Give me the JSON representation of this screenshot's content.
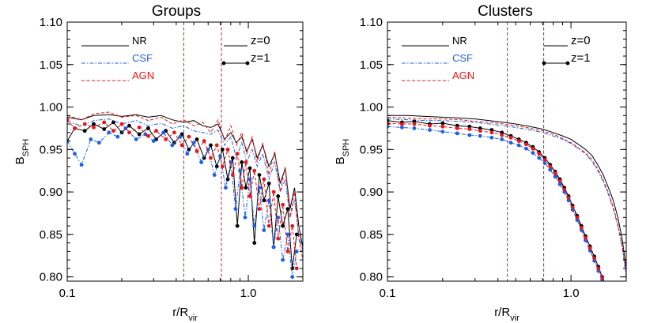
{
  "figure": {
    "colors": {
      "NR": "#000000",
      "CSF": "#1f5fe6",
      "AGN": "#e8141b",
      "vline": "#e8141b"
    }
  },
  "chart_data": [
    {
      "type": "line",
      "title": "Groups",
      "xlabel": "r/R",
      "xlabel_sub": "vir",
      "ylabel": "B",
      "ylabel_sub": "SPH",
      "xscale": "log",
      "xlim": [
        0.1,
        2.0
      ],
      "ylim": [
        0.795,
        1.1
      ],
      "xticks": [
        {
          "v": 0.1,
          "label": "0.1"
        },
        {
          "v": 1.0,
          "label": "1.0"
        }
      ],
      "yticks": [
        {
          "v": 0.8,
          "label": "0.80"
        },
        {
          "v": 0.85,
          "label": "0.85"
        },
        {
          "v": 0.9,
          "label": "0.90"
        },
        {
          "v": 0.95,
          "label": "0.95"
        },
        {
          "v": 1.0,
          "label": "1.00"
        },
        {
          "v": 1.05,
          "label": "1.05"
        },
        {
          "v": 1.1,
          "label": "1.10"
        }
      ],
      "vlines": [
        0.44,
        0.71
      ],
      "legend_runs": [
        "NR",
        "CSF",
        "AGN"
      ],
      "legend_z": [
        "z=0",
        "z=1"
      ],
      "series": [
        {
          "name": "NR",
          "z": "z=0",
          "x": [
            0.1,
            0.12,
            0.14,
            0.17,
            0.2,
            0.24,
            0.28,
            0.33,
            0.38,
            0.44,
            0.5,
            0.56,
            0.62,
            0.68,
            0.74,
            0.8,
            0.86,
            0.92,
            0.98,
            1.05,
            1.12,
            1.2,
            1.3,
            1.4,
            1.5,
            1.6,
            1.7,
            1.8,
            1.9,
            2.0
          ],
          "y": [
            0.988,
            0.985,
            0.99,
            0.991,
            0.989,
            0.991,
            0.988,
            0.99,
            0.985,
            0.982,
            0.984,
            0.978,
            0.976,
            0.98,
            0.962,
            0.97,
            0.958,
            0.965,
            0.948,
            0.962,
            0.94,
            0.955,
            0.93,
            0.945,
            0.91,
            0.928,
            0.88,
            0.905,
            0.86,
            0.835
          ]
        },
        {
          "name": "CSF",
          "z": "z=0",
          "x": [
            0.1,
            0.12,
            0.14,
            0.17,
            0.2,
            0.24,
            0.28,
            0.33,
            0.38,
            0.44,
            0.5,
            0.56,
            0.62,
            0.68,
            0.74,
            0.8,
            0.86,
            0.92,
            0.98,
            1.05,
            1.12,
            1.2,
            1.3,
            1.4,
            1.5,
            1.6,
            1.7,
            1.8,
            1.9,
            2.0
          ],
          "y": [
            0.983,
            0.978,
            0.984,
            0.986,
            0.98,
            0.984,
            0.978,
            0.981,
            0.975,
            0.978,
            0.972,
            0.97,
            0.968,
            0.973,
            0.955,
            0.965,
            0.94,
            0.958,
            0.935,
            0.95,
            0.93,
            0.945,
            0.915,
            0.935,
            0.9,
            0.915,
            0.87,
            0.89,
            0.85,
            0.83
          ]
        },
        {
          "name": "AGN",
          "z": "z=0",
          "x": [
            0.1,
            0.12,
            0.14,
            0.17,
            0.2,
            0.24,
            0.28,
            0.33,
            0.38,
            0.44,
            0.5,
            0.56,
            0.62,
            0.68,
            0.74,
            0.8,
            0.86,
            0.92,
            0.98,
            1.05,
            1.12,
            1.2,
            1.3,
            1.4,
            1.5,
            1.6,
            1.7,
            1.8,
            1.9,
            2.0
          ],
          "y": [
            0.99,
            0.985,
            0.992,
            0.994,
            0.988,
            0.99,
            0.984,
            0.988,
            0.98,
            0.985,
            0.978,
            0.982,
            0.97,
            0.985,
            0.96,
            0.978,
            0.955,
            0.97,
            0.945,
            0.965,
            0.935,
            0.958,
            0.92,
            0.948,
            0.9,
            0.93,
            0.87,
            0.9,
            0.845,
            0.82
          ]
        },
        {
          "name": "NR",
          "z": "z=1",
          "x": [
            0.1,
            0.11,
            0.125,
            0.14,
            0.16,
            0.18,
            0.2,
            0.22,
            0.25,
            0.28,
            0.31,
            0.35,
            0.39,
            0.43,
            0.47,
            0.52,
            0.57,
            0.62,
            0.67,
            0.72,
            0.77,
            0.82,
            0.87,
            0.92,
            0.97,
            1.02,
            1.08,
            1.15,
            1.22,
            1.3,
            1.38,
            1.46,
            1.55,
            1.65,
            1.75,
            1.85
          ],
          "y": [
            0.96,
            0.975,
            0.972,
            0.98,
            0.974,
            0.982,
            0.97,
            0.978,
            0.968,
            0.975,
            0.962,
            0.972,
            0.958,
            0.968,
            0.95,
            0.962,
            0.94,
            0.955,
            0.93,
            0.95,
            0.915,
            0.94,
            0.86,
            0.935,
            0.905,
            0.928,
            0.84,
            0.92,
            0.89,
            0.91,
            0.835,
            0.895,
            0.86,
            0.88,
            0.81,
            0.85
          ]
        },
        {
          "name": "CSF",
          "z": "z=1",
          "x": [
            0.1,
            0.11,
            0.12,
            0.135,
            0.15,
            0.17,
            0.19,
            0.21,
            0.24,
            0.27,
            0.3,
            0.34,
            0.38,
            0.42,
            0.46,
            0.5,
            0.55,
            0.6,
            0.65,
            0.7,
            0.75,
            0.8,
            0.85,
            0.9,
            0.96,
            1.02,
            1.08,
            1.15,
            1.22,
            1.3,
            1.38,
            1.46,
            1.55,
            1.65,
            1.75,
            1.85
          ],
          "y": [
            0.96,
            0.945,
            0.932,
            0.962,
            0.958,
            0.97,
            0.965,
            0.975,
            0.962,
            0.968,
            0.96,
            0.97,
            0.955,
            0.965,
            0.945,
            0.958,
            0.935,
            0.95,
            0.92,
            0.942,
            0.905,
            0.935,
            0.88,
            0.925,
            0.87,
            0.915,
            0.86,
            0.905,
            0.855,
            0.89,
            0.835,
            0.87,
            0.82,
            0.85,
            0.8,
            0.83
          ]
        },
        {
          "name": "AGN",
          "z": "z=1",
          "x": [
            0.1,
            0.11,
            0.125,
            0.14,
            0.16,
            0.18,
            0.2,
            0.22,
            0.25,
            0.28,
            0.31,
            0.35,
            0.39,
            0.43,
            0.47,
            0.52,
            0.57,
            0.62,
            0.67,
            0.72,
            0.77,
            0.82,
            0.87,
            0.92,
            0.97,
            1.02,
            1.08,
            1.15,
            1.22,
            1.3,
            1.38,
            1.46,
            1.55,
            1.65,
            1.75,
            1.85
          ],
          "y": [
            0.985,
            0.975,
            0.98,
            0.976,
            0.982,
            0.972,
            0.98,
            0.97,
            0.976,
            0.966,
            0.972,
            0.962,
            0.97,
            0.955,
            0.965,
            0.948,
            0.96,
            0.94,
            0.955,
            0.93,
            0.95,
            0.92,
            0.945,
            0.905,
            0.935,
            0.895,
            0.925,
            0.88,
            0.915,
            0.86,
            0.9,
            0.845,
            0.885,
            0.83,
            0.86,
            0.81
          ]
        }
      ]
    },
    {
      "type": "line",
      "title": "Clusters",
      "xlabel": "r/R",
      "xlabel_sub": "vir",
      "ylabel": "B",
      "ylabel_sub": "SPH",
      "xscale": "log",
      "xlim": [
        0.1,
        2.0
      ],
      "ylim": [
        0.795,
        1.1
      ],
      "xticks": [
        {
          "v": 0.1,
          "label": "0.1"
        },
        {
          "v": 1.0,
          "label": "1.0"
        }
      ],
      "yticks": [
        {
          "v": 0.8,
          "label": "0.80"
        },
        {
          "v": 0.85,
          "label": "0.85"
        },
        {
          "v": 0.9,
          "label": "0.90"
        },
        {
          "v": 0.95,
          "label": "0.95"
        },
        {
          "v": 1.0,
          "label": "1.00"
        },
        {
          "v": 1.05,
          "label": "1.05"
        },
        {
          "v": 1.1,
          "label": "1.10"
        }
      ],
      "vlines": [
        0.45,
        0.71
      ],
      "legend_runs": [
        "NR",
        "CSF",
        "AGN"
      ],
      "legend_z": [
        "z=0",
        "z=1"
      ],
      "series": [
        {
          "name": "NR",
          "z": "z=0",
          "x": [
            0.1,
            0.13,
            0.16,
            0.2,
            0.25,
            0.3,
            0.36,
            0.43,
            0.5,
            0.6,
            0.7,
            0.8,
            0.9,
            1.0,
            1.1,
            1.2,
            1.3,
            1.4,
            1.5,
            1.6,
            1.7,
            1.8,
            1.9,
            2.0
          ],
          "y": [
            0.99,
            0.99,
            0.989,
            0.988,
            0.987,
            0.986,
            0.984,
            0.982,
            0.98,
            0.977,
            0.974,
            0.97,
            0.966,
            0.962,
            0.956,
            0.95,
            0.943,
            0.932,
            0.92,
            0.905,
            0.89,
            0.87,
            0.845,
            0.81
          ]
        },
        {
          "name": "CSF",
          "z": "z=0",
          "x": [
            0.1,
            0.13,
            0.16,
            0.2,
            0.25,
            0.3,
            0.36,
            0.43,
            0.5,
            0.6,
            0.7,
            0.8,
            0.9,
            1.0,
            1.1,
            1.2,
            1.3,
            1.4,
            1.5,
            1.6,
            1.7,
            1.8,
            1.9,
            2.0
          ],
          "y": [
            0.986,
            0.985,
            0.984,
            0.984,
            0.983,
            0.982,
            0.98,
            0.978,
            0.976,
            0.973,
            0.97,
            0.966,
            0.962,
            0.957,
            0.951,
            0.945,
            0.936,
            0.925,
            0.912,
            0.897,
            0.88,
            0.86,
            0.835,
            0.8
          ]
        },
        {
          "name": "AGN",
          "z": "z=0",
          "x": [
            0.1,
            0.13,
            0.16,
            0.2,
            0.25,
            0.3,
            0.36,
            0.43,
            0.5,
            0.6,
            0.7,
            0.8,
            0.9,
            1.0,
            1.1,
            1.2,
            1.3,
            1.4,
            1.5,
            1.6,
            1.7,
            1.8,
            1.9,
            2.0
          ],
          "y": [
            0.988,
            0.987,
            0.986,
            0.986,
            0.985,
            0.983,
            0.982,
            0.98,
            0.978,
            0.975,
            0.972,
            0.968,
            0.963,
            0.958,
            0.952,
            0.946,
            0.938,
            0.927,
            0.914,
            0.899,
            0.882,
            0.862,
            0.838,
            0.805
          ]
        },
        {
          "name": "NR",
          "z": "z=1",
          "x": [
            0.1,
            0.12,
            0.14,
            0.17,
            0.2,
            0.24,
            0.28,
            0.32,
            0.37,
            0.42,
            0.47,
            0.52,
            0.57,
            0.62,
            0.67,
            0.72,
            0.77,
            0.82,
            0.87,
            0.92,
            0.97,
            1.02,
            1.08,
            1.14,
            1.2,
            1.27,
            1.34,
            1.41,
            1.48,
            1.55,
            1.62,
            1.68
          ],
          "y": [
            0.984,
            0.982,
            0.983,
            0.98,
            0.981,
            0.978,
            0.977,
            0.975,
            0.973,
            0.97,
            0.966,
            0.962,
            0.958,
            0.953,
            0.947,
            0.94,
            0.932,
            0.924,
            0.915,
            0.905,
            0.895,
            0.884,
            0.872,
            0.86,
            0.848,
            0.836,
            0.824,
            0.812,
            0.8,
            0.79,
            0.785,
            0.78
          ]
        },
        {
          "name": "CSF",
          "z": "z=1",
          "x": [
            0.1,
            0.12,
            0.14,
            0.17,
            0.2,
            0.24,
            0.28,
            0.32,
            0.37,
            0.42,
            0.47,
            0.52,
            0.57,
            0.62,
            0.67,
            0.72,
            0.77,
            0.82,
            0.87,
            0.92,
            0.97,
            1.02,
            1.08,
            1.14,
            1.2,
            1.27,
            1.34,
            1.41,
            1.48,
            1.55,
            1.62,
            1.68
          ],
          "y": [
            0.977,
            0.976,
            0.975,
            0.973,
            0.971,
            0.969,
            0.967,
            0.966,
            0.964,
            0.962,
            0.958,
            0.955,
            0.951,
            0.946,
            0.94,
            0.934,
            0.926,
            0.918,
            0.909,
            0.9,
            0.89,
            0.879,
            0.867,
            0.855,
            0.843,
            0.831,
            0.819,
            0.807,
            0.797,
            0.788,
            0.782,
            0.778
          ]
        },
        {
          "name": "AGN",
          "z": "z=1",
          "x": [
            0.1,
            0.12,
            0.14,
            0.17,
            0.2,
            0.24,
            0.28,
            0.32,
            0.37,
            0.42,
            0.47,
            0.52,
            0.57,
            0.62,
            0.67,
            0.72,
            0.77,
            0.82,
            0.87,
            0.92,
            0.97,
            1.02,
            1.08,
            1.14,
            1.2,
            1.27,
            1.34,
            1.41,
            1.48,
            1.55,
            1.62,
            1.68
          ],
          "y": [
            0.981,
            0.98,
            0.98,
            0.978,
            0.977,
            0.975,
            0.974,
            0.972,
            0.97,
            0.967,
            0.964,
            0.96,
            0.956,
            0.951,
            0.945,
            0.938,
            0.93,
            0.922,
            0.913,
            0.903,
            0.893,
            0.882,
            0.87,
            0.858,
            0.846,
            0.834,
            0.822,
            0.81,
            0.799,
            0.79,
            0.784,
            0.779
          ]
        }
      ]
    }
  ]
}
